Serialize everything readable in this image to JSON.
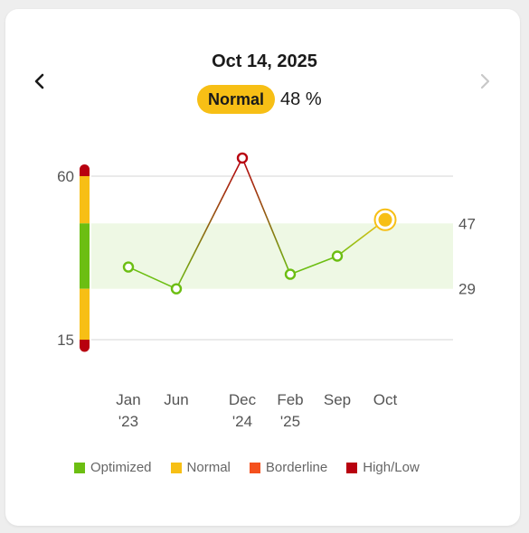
{
  "header": {
    "date": "Oct 14, 2025",
    "status_label": "Normal",
    "status_value": "48 %",
    "prev_icon": "chevron-left-icon",
    "next_icon": "chevron-right-icon"
  },
  "colors": {
    "optimized": "#6cbe12",
    "normal": "#f7bf15",
    "borderline": "#f4511e",
    "highlow": "#b8000f",
    "band_fill": "#eef8e4",
    "grid": "#d6d6d6"
  },
  "legend": [
    {
      "label": "Optimized",
      "color": "#6cbe12"
    },
    {
      "label": "Normal",
      "color": "#f7bf15"
    },
    {
      "label": "Borderline",
      "color": "#f4511e"
    },
    {
      "label": "High/Low",
      "color": "#b8000f"
    }
  ],
  "chart_data": {
    "type": "line",
    "title": "",
    "xlabel": "",
    "ylabel": "",
    "ylim": [
      15,
      60
    ],
    "left_ticks": [
      60,
      15
    ],
    "right_ticks": [
      47,
      29
    ],
    "optimal_range": [
      29,
      47
    ],
    "x_labels": [
      {
        "lines": [
          "Jan",
          "'23"
        ]
      },
      {
        "lines": [
          "Jun",
          ""
        ]
      },
      {
        "lines": [
          "Dec",
          "'24"
        ]
      },
      {
        "lines": [
          "Feb",
          "'25"
        ]
      },
      {
        "lines": [
          "Sep",
          ""
        ]
      },
      {
        "lines": [
          "Oct",
          ""
        ]
      }
    ],
    "points": [
      {
        "x": "Jan '23",
        "y": 35,
        "status": "optimized"
      },
      {
        "x": "Jun",
        "y": 29,
        "status": "optimized"
      },
      {
        "x": "Dec '24",
        "y": 65,
        "status": "highlow"
      },
      {
        "x": "Feb '25",
        "y": 33,
        "status": "optimized"
      },
      {
        "x": "Sep",
        "y": 38,
        "status": "optimized"
      },
      {
        "x": "Oct",
        "y": 48,
        "status": "normal",
        "selected": true
      }
    ],
    "scale_bands": [
      {
        "from": 60,
        "to": 65,
        "status": "highlow"
      },
      {
        "from": 47,
        "to": 60,
        "status": "normal"
      },
      {
        "from": 29,
        "to": 47,
        "status": "optimized"
      },
      {
        "from": 15,
        "to": 29,
        "status": "normal"
      },
      {
        "from": 10,
        "to": 15,
        "status": "highlow"
      }
    ]
  }
}
